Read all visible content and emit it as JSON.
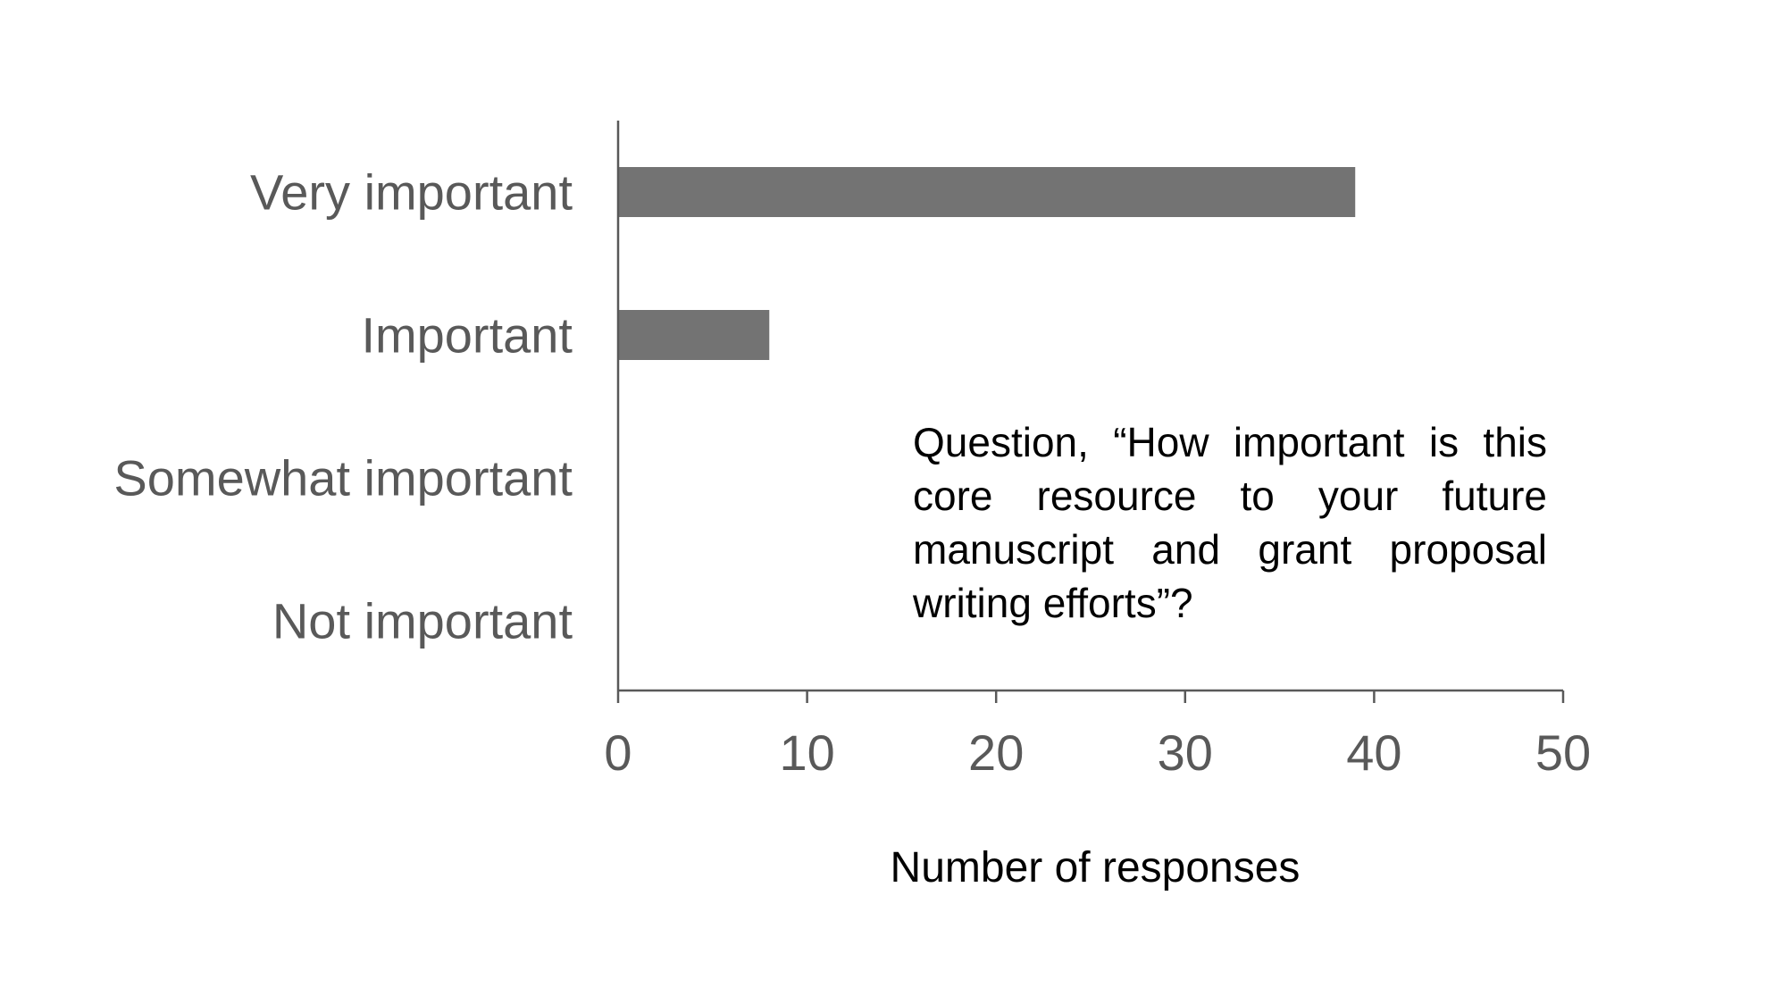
{
  "chart_data": {
    "type": "bar",
    "orientation": "horizontal",
    "categories": [
      "Very important",
      "Important",
      "Somewhat important",
      "Not important"
    ],
    "values": [
      39,
      8,
      0,
      0
    ],
    "xlabel": "Number of responses",
    "ylabel": "",
    "xlim": [
      0,
      50
    ],
    "xticks": [
      "0",
      "10",
      "20",
      "30",
      "40",
      "50"
    ],
    "grid": false,
    "legend": false,
    "annotation": "Question, “How important is this core resource to your future manuscript and grant proposal writing efforts”?",
    "colors": {
      "bar": "#737373",
      "axis": "#595959",
      "label": "#595959"
    }
  }
}
